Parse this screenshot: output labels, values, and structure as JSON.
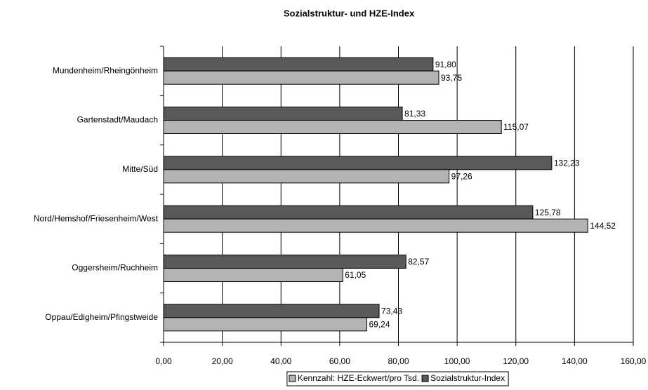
{
  "chart_data": {
    "type": "bar",
    "orientation": "horizontal",
    "title": "Sozialstruktur- und HZE-Index",
    "categories": [
      "Mundenheim/Rheingönheim",
      "Gartenstadt/Maudach",
      "Mitte/Süd",
      "Nord/Hemshof/Friesenheim/West",
      "Oggersheim/Ruchheim",
      "Oppau/Edigheim/Pfingstweide"
    ],
    "series": [
      {
        "name": "Sozialstruktur-Index",
        "color": "#595959",
        "values": [
          91.8,
          81.33,
          132.23,
          125.78,
          82.57,
          73.43
        ],
        "value_labels": [
          "91,80",
          "81,33",
          "132,23",
          "125,78",
          "82,57",
          "73,43"
        ]
      },
      {
        "name": "Kennzahl: HZE-Eckwert/pro Tsd.",
        "color": "#b3b3b3",
        "values": [
          93.75,
          115.07,
          97.26,
          144.52,
          61.05,
          69.24
        ],
        "value_labels": [
          "93,75",
          "115,07",
          "97,26",
          "144,52",
          "61,05",
          "69,24"
        ]
      }
    ],
    "xlim": [
      0,
      160
    ],
    "xticks": [
      {
        "value": 0,
        "label": "0,00"
      },
      {
        "value": 20,
        "label": "20,00"
      },
      {
        "value": 40,
        "label": "40,00"
      },
      {
        "value": 60,
        "label": "60,00"
      },
      {
        "value": 80,
        "label": "80,00"
      },
      {
        "value": 100,
        "label": "100,00"
      },
      {
        "value": 120,
        "label": "120,00"
      },
      {
        "value": 140,
        "label": "140,00"
      },
      {
        "value": 160,
        "label": "160,00"
      }
    ],
    "grid": true,
    "legend": "bottom"
  }
}
